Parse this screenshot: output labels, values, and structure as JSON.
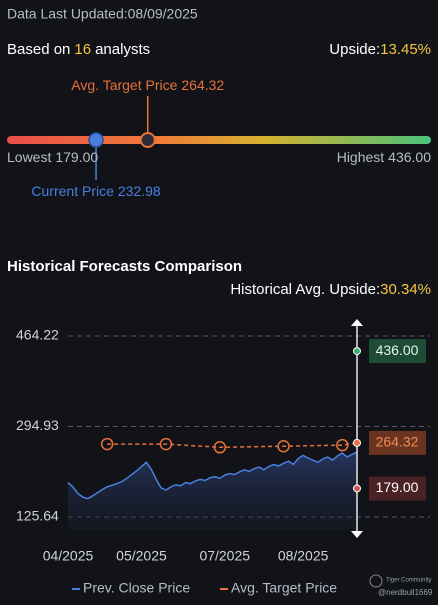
{
  "header": {
    "updated": "Data Last Updated:08/09/2025",
    "based_prefix": "Based on",
    "analyst_count": "16",
    "based_suffix": "analysts",
    "upside_label": "Upside:",
    "upside_value": "13.45%"
  },
  "price_targets": {
    "average": {
      "label": "Avg. Target Price",
      "value": 264.32,
      "value_label": "264.32"
    },
    "current": {
      "label": "Current Price",
      "value": 232.98,
      "value_label": "232.98"
    },
    "lowest": {
      "label": "Lowest",
      "value": 179,
      "value_label": "179.00"
    },
    "highest": {
      "label": "Highest",
      "value": 436,
      "value_label": "436.00"
    }
  },
  "chart_data": {
    "type": "line",
    "title": "Historical Forecasts Comparison",
    "subtitle_label": "Historical Avg. Upside:",
    "subtitle_value": "30.34%",
    "xlim": [
      0,
      59
    ],
    "xticks": [
      {
        "value": 0,
        "label": "04/2025"
      },
      {
        "value": 15,
        "label": "05/2025"
      },
      {
        "value": 32,
        "label": "07/2025"
      },
      {
        "value": 48,
        "label": "08/2025"
      }
    ],
    "ylim": [
      125.64,
      464.22
    ],
    "yticks": [
      {
        "value": 464.22,
        "label": "464.22"
      },
      {
        "value": 294.93,
        "label": "294.93"
      },
      {
        "value": 125.64,
        "label": "125.64"
      }
    ],
    "grid": true,
    "series": [
      {
        "name": "Prev. Close Price",
        "color": "#4a7fe0",
        "x": [
          0,
          1,
          2,
          3,
          4,
          5,
          6,
          7,
          8,
          9,
          10,
          11,
          12,
          13,
          14,
          15,
          16,
          17,
          18,
          19,
          20,
          21,
          22,
          23,
          24,
          25,
          26,
          27,
          28,
          29,
          30,
          31,
          32,
          33,
          34,
          35,
          36,
          37,
          38,
          39,
          40,
          41,
          42,
          43,
          44,
          45,
          46,
          47,
          48,
          49,
          50,
          51,
          52,
          53,
          54,
          55,
          56,
          57,
          58,
          59
        ],
        "values": [
          190,
          182,
          170,
          163,
          160,
          165,
          171,
          177,
          182,
          185,
          188,
          192,
          198,
          205,
          212,
          220,
          228,
          215,
          196,
          180,
          176,
          182,
          186,
          184,
          190,
          188,
          193,
          196,
          194,
          199,
          201,
          198,
          204,
          207,
          205,
          210,
          214,
          211,
          216,
          219,
          214,
          220,
          224,
          221,
          226,
          230,
          224,
          235,
          241,
          236,
          232,
          228,
          234,
          238,
          232,
          240,
          245,
          238,
          243,
          247
        ]
      },
      {
        "name": "Avg. Target Price",
        "color": "#e8703a",
        "x": [
          8,
          20,
          31,
          44,
          56,
          59
        ],
        "values": [
          262,
          262,
          256,
          258,
          260,
          264.32
        ]
      }
    ],
    "forecast": [
      {
        "value": 436,
        "value_label": "436.00",
        "color": "#3fae6e"
      },
      {
        "value": 264.32,
        "value_label": "264.32",
        "color": "#e8703a"
      },
      {
        "value": 179,
        "value_label": "179.00",
        "color": "#d05a5a"
      }
    ],
    "watermark": [
      "Tiger Community",
      "@nerdbull1669"
    ]
  }
}
